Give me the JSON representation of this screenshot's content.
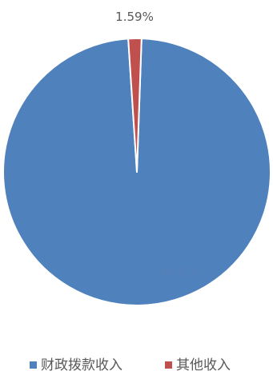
{
  "chart_data": {
    "type": "pie",
    "title": "",
    "slices": [
      {
        "label": "财政拨款收入",
        "value": 98.41,
        "value_label": "98.41%",
        "color": "#4f81bd"
      },
      {
        "label": "其他收入",
        "value": 1.59,
        "value_label": "1.59%",
        "color": "#c0504d"
      }
    ],
    "legend_position": "bottom"
  }
}
